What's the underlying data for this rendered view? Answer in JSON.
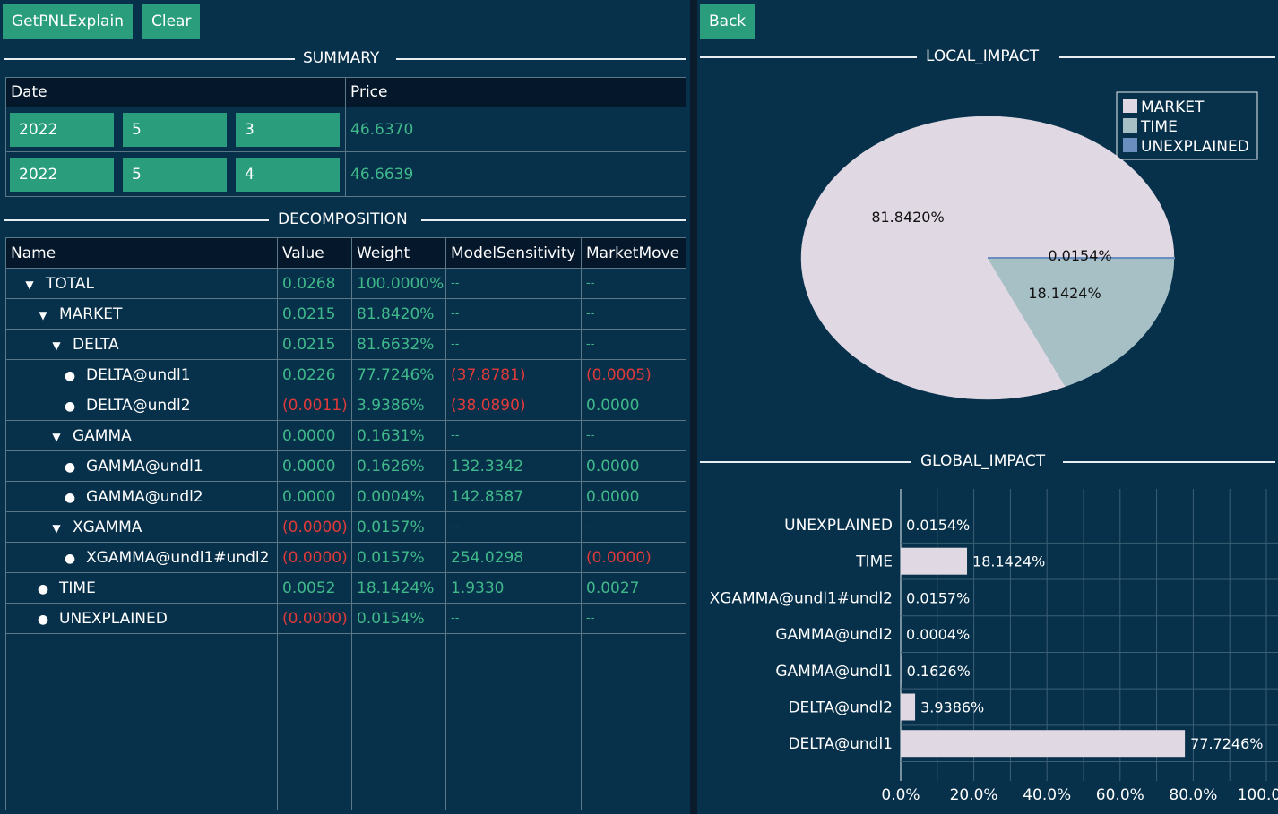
{
  "toolbar": {
    "getpnl_label": "GetPNLExplain",
    "clear_label": "Clear",
    "back_label": "Back"
  },
  "summary": {
    "title": "SUMMARY",
    "headers": [
      "Date",
      "Price"
    ],
    "rows": [
      {
        "year": "2022",
        "month": "5",
        "day": "3",
        "price": "46.6370"
      },
      {
        "year": "2022",
        "month": "5",
        "day": "4",
        "price": "46.6639"
      }
    ]
  },
  "decomposition": {
    "title": "DECOMPOSITION",
    "headers": [
      "Name",
      "Value",
      "Weight",
      "ModelSensitivity",
      "MarketMove"
    ],
    "rows": [
      {
        "level": 0,
        "marker": "triangle",
        "name": "TOTAL",
        "value": "0.0268",
        "weight": "100.0000%",
        "sensitivity": "--",
        "move": "--",
        "value_neg": false,
        "sens_neg": false,
        "move_neg": false
      },
      {
        "level": 1,
        "marker": "triangle",
        "name": "MARKET",
        "value": "0.0215",
        "weight": "81.8420%",
        "sensitivity": "--",
        "move": "--",
        "value_neg": false,
        "sens_neg": false,
        "move_neg": false
      },
      {
        "level": 2,
        "marker": "triangle",
        "name": "DELTA",
        "value": "0.0215",
        "weight": "81.6632%",
        "sensitivity": "--",
        "move": "--",
        "value_neg": false,
        "sens_neg": false,
        "move_neg": false
      },
      {
        "level": 3,
        "marker": "dot",
        "name": "DELTA@undl1",
        "value": "0.0226",
        "weight": "77.7246%",
        "sensitivity": "(37.8781)",
        "move": "(0.0005)",
        "value_neg": false,
        "sens_neg": true,
        "move_neg": true
      },
      {
        "level": 3,
        "marker": "dot",
        "name": "DELTA@undl2",
        "value": "(0.0011)",
        "weight": "3.9386%",
        "sensitivity": "(38.0890)",
        "move": "0.0000",
        "value_neg": true,
        "sens_neg": true,
        "move_neg": false
      },
      {
        "level": 2,
        "marker": "triangle",
        "name": "GAMMA",
        "value": "0.0000",
        "weight": "0.1631%",
        "sensitivity": "--",
        "move": "--",
        "value_neg": false,
        "sens_neg": false,
        "move_neg": false
      },
      {
        "level": 3,
        "marker": "dot",
        "name": "GAMMA@undl1",
        "value": "0.0000",
        "weight": "0.1626%",
        "sensitivity": "132.3342",
        "move": "0.0000",
        "value_neg": false,
        "sens_neg": false,
        "move_neg": false
      },
      {
        "level": 3,
        "marker": "dot",
        "name": "GAMMA@undl2",
        "value": "0.0000",
        "weight": "0.0004%",
        "sensitivity": "142.8587",
        "move": "0.0000",
        "value_neg": false,
        "sens_neg": false,
        "move_neg": false
      },
      {
        "level": 2,
        "marker": "triangle",
        "name": "XGAMMA",
        "value": "(0.0000)",
        "weight": "0.0157%",
        "sensitivity": "--",
        "move": "--",
        "value_neg": true,
        "sens_neg": false,
        "move_neg": false
      },
      {
        "level": 3,
        "marker": "dot",
        "name": "XGAMMA@undl1#undl2",
        "value": "(0.0000)",
        "weight": "0.0157%",
        "sensitivity": "254.0298",
        "move": "(0.0000)",
        "value_neg": true,
        "sens_neg": false,
        "move_neg": true
      },
      {
        "level": 1,
        "marker": "dot",
        "name": "TIME",
        "value": "0.0052",
        "weight": "18.1424%",
        "sensitivity": "1.9330",
        "move": "0.0027",
        "value_neg": false,
        "sens_neg": false,
        "move_neg": false
      },
      {
        "level": 1,
        "marker": "dot",
        "name": "UNEXPLAINED",
        "value": "(0.0000)",
        "weight": "0.0154%",
        "sensitivity": "--",
        "move": "--",
        "value_neg": true,
        "sens_neg": false,
        "move_neg": false
      }
    ]
  },
  "local_impact": {
    "title": "LOCAL_IMPACT"
  },
  "global_impact": {
    "title": "GLOBAL_IMPACT"
  },
  "chart_data": [
    {
      "type": "pie",
      "title": "LOCAL_IMPACT",
      "legend_position": "top-right",
      "slices": [
        {
          "name": "MARKET",
          "value": 81.842,
          "label": "81.8420%",
          "color": "#e0d8e2"
        },
        {
          "name": "TIME",
          "value": 18.1424,
          "label": "18.1424%",
          "color": "#a6c0c6"
        },
        {
          "name": "UNEXPLAINED",
          "value": 0.0154,
          "label": "0.0154%",
          "color": "#6a8fbf"
        }
      ]
    },
    {
      "type": "bar",
      "orientation": "horizontal",
      "title": "GLOBAL_IMPACT",
      "categories": [
        "UNEXPLAINED",
        "TIME",
        "XGAMMA@undl1#undl2",
        "GAMMA@undl2",
        "GAMMA@undl1",
        "DELTA@undl2",
        "DELTA@undl1"
      ],
      "values": [
        0.0154,
        18.1424,
        0.0157,
        0.0004,
        0.1626,
        3.9386,
        77.7246
      ],
      "labels": [
        "0.0154%",
        "18.1424%",
        "0.0157%",
        "0.0004%",
        "0.1626%",
        "3.9386%",
        "77.7246%"
      ],
      "xlim": [
        0,
        100
      ],
      "x_ticks": [
        "0.0%",
        "20.0%",
        "40.0%",
        "60.0%",
        "80.0%",
        "100.0%"
      ],
      "grid": true,
      "bar_color": "#e0d8e2"
    }
  ]
}
